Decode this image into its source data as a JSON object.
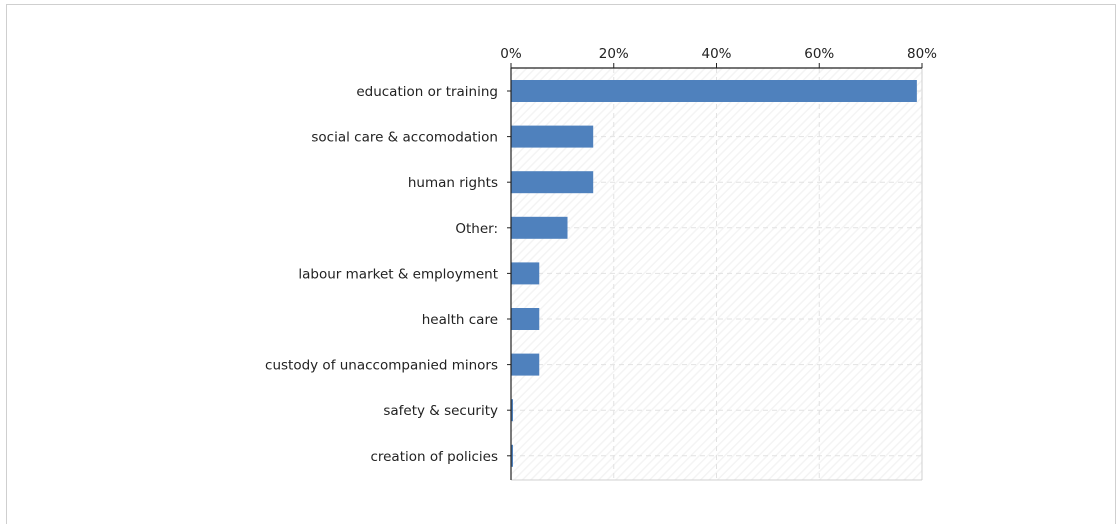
{
  "colors": {
    "bar": "#4f81bd",
    "axis": "#222222",
    "grid": "#e2e2e2",
    "plot_bg_hatch": "#f4f4f4"
  },
  "chart_data": {
    "type": "bar",
    "orientation": "horizontal",
    "categories": [
      "education or training",
      "social care & accomodation",
      "human rights",
      "Other:",
      "labour market & employment",
      "health care",
      "custody of unaccompanied minors",
      "safety & security",
      "creation of policies"
    ],
    "values": [
      79,
      16,
      16,
      11,
      5.5,
      5.5,
      5.5,
      0,
      0
    ],
    "x_ticks": [
      "0%",
      "20%",
      "40%",
      "60%",
      "80%"
    ],
    "x_tick_values": [
      0,
      20,
      40,
      60,
      80
    ],
    "xlim": [
      0,
      80
    ],
    "x_axis_position": "top",
    "grid": true,
    "legend": "none"
  }
}
